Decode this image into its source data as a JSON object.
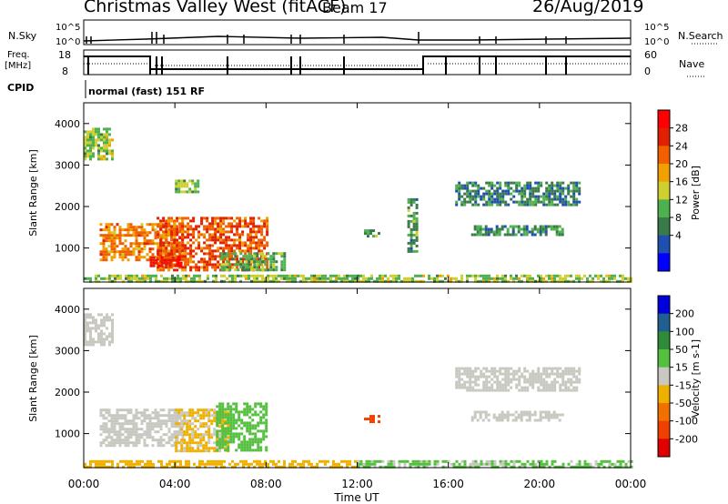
{
  "header": {
    "title": "Christmas Valley West (fitACF)",
    "beam": "Beam 17",
    "date": "26/Aug/2019"
  },
  "status_panels": {
    "nsky_label": "N.Sky",
    "nsky_ticks": [
      "10^5",
      "10^0"
    ],
    "nsearch_label": "N.Search",
    "nsearch_ticks": [
      "10^5",
      "10^0"
    ],
    "freq_label_top": "Freq.",
    "freq_label_bottom": "[MHz]",
    "freq_ticks": [
      "18",
      "8"
    ],
    "nave_label": "Nave",
    "nave_ticks": [
      "60",
      "0"
    ],
    "cpid_label": "CPID",
    "cpid_value": "normal (fast) 151 RF"
  },
  "chart_data": [
    {
      "type": "heatmap",
      "name": "power",
      "ylabel": "Slant Range [km]",
      "yticks": [
        "4000",
        "3000",
        "2000",
        "1000"
      ],
      "ylim": [
        180,
        4500
      ],
      "xlim": [
        0,
        24
      ],
      "colorbar_label": "Power [dB]",
      "colorbar_ticks": [
        "28",
        "24",
        "20",
        "16",
        "12",
        "8",
        "4"
      ],
      "colorbar_colors": [
        "#0000ff",
        "#1f4fb0",
        "#3a7a4a",
        "#4fb04f",
        "#cfcf30",
        "#f0a000",
        "#f06000",
        "#e02000",
        "#ff0000"
      ],
      "regions": [
        {
          "t0": 0.0,
          "t1": 1.3,
          "r0": 3150,
          "r1": 3900,
          "value": 14
        },
        {
          "t0": 0.7,
          "t1": 4.3,
          "r0": 700,
          "r1": 1600,
          "value": 22
        },
        {
          "t0": 3.2,
          "t1": 8.0,
          "r0": 500,
          "r1": 1750,
          "value": 25
        },
        {
          "t0": 2.9,
          "t1": 4.3,
          "r0": 550,
          "r1": 800,
          "value": 28
        },
        {
          "t0": 4.0,
          "t1": 5.0,
          "r0": 2350,
          "r1": 2650,
          "value": 14
        },
        {
          "t0": 6.0,
          "t1": 8.8,
          "r0": 500,
          "r1": 900,
          "value": 12
        },
        {
          "t0": 12.3,
          "t1": 12.9,
          "r0": 1300,
          "r1": 1450,
          "value": 10
        },
        {
          "t0": 14.2,
          "t1": 14.6,
          "r0": 900,
          "r1": 2200,
          "value": 10
        },
        {
          "t0": 16.3,
          "t1": 21.7,
          "r0": 2050,
          "r1": 2600,
          "value": 8
        },
        {
          "t0": 17.0,
          "t1": 21.0,
          "r0": 1350,
          "r1": 1550,
          "value": 9
        },
        {
          "t0": 0.0,
          "t1": 24.0,
          "r0": 180,
          "r1": 360,
          "value": 14
        }
      ]
    },
    {
      "type": "heatmap",
      "name": "velocity",
      "ylabel": "Slant Range [km]",
      "yticks": [
        "4000",
        "3000",
        "2000",
        "1000"
      ],
      "ylim": [
        180,
        4500
      ],
      "xlim": [
        0,
        24
      ],
      "xlabel": "Time UT",
      "xticks": [
        "00:00",
        "04:00",
        "08:00",
        "12:00",
        "16:00",
        "20:00",
        "00:00"
      ],
      "colorbar_label": "Velocity [m s-1]",
      "colorbar_ticks": [
        "200",
        "100",
        "50",
        "15",
        "-15",
        "-50",
        "-100",
        "-200"
      ],
      "colorbar_colors": [
        "#0000dd",
        "#206090",
        "#2f8a3a",
        "#55c040",
        "#c8c8c0",
        "#f0b000",
        "#f07000",
        "#f04000",
        "#e00000"
      ],
      "regions": [
        {
          "t0": 0.0,
          "t1": 1.3,
          "r0": 3150,
          "r1": 3900,
          "value": 0
        },
        {
          "t0": 0.7,
          "t1": 4.3,
          "r0": 700,
          "r1": 1600,
          "value": 0
        },
        {
          "t0": 4.0,
          "t1": 6.3,
          "r0": 550,
          "r1": 1600,
          "value": -20
        },
        {
          "t0": 5.8,
          "t1": 8.0,
          "r0": 600,
          "r1": 1750,
          "value": 30
        },
        {
          "t0": 12.3,
          "t1": 12.9,
          "r0": 1300,
          "r1": 1450,
          "value": -120
        },
        {
          "t0": 16.3,
          "t1": 21.7,
          "r0": 2050,
          "r1": 2600,
          "value": 0
        },
        {
          "t0": 17.0,
          "t1": 21.0,
          "r0": 1350,
          "r1": 1550,
          "value": 0
        },
        {
          "t0": 0.0,
          "t1": 12.0,
          "r0": 180,
          "r1": 360,
          "value": -30
        },
        {
          "t0": 12.0,
          "t1": 24.0,
          "r0": 180,
          "r1": 360,
          "value": 20
        }
      ]
    }
  ]
}
